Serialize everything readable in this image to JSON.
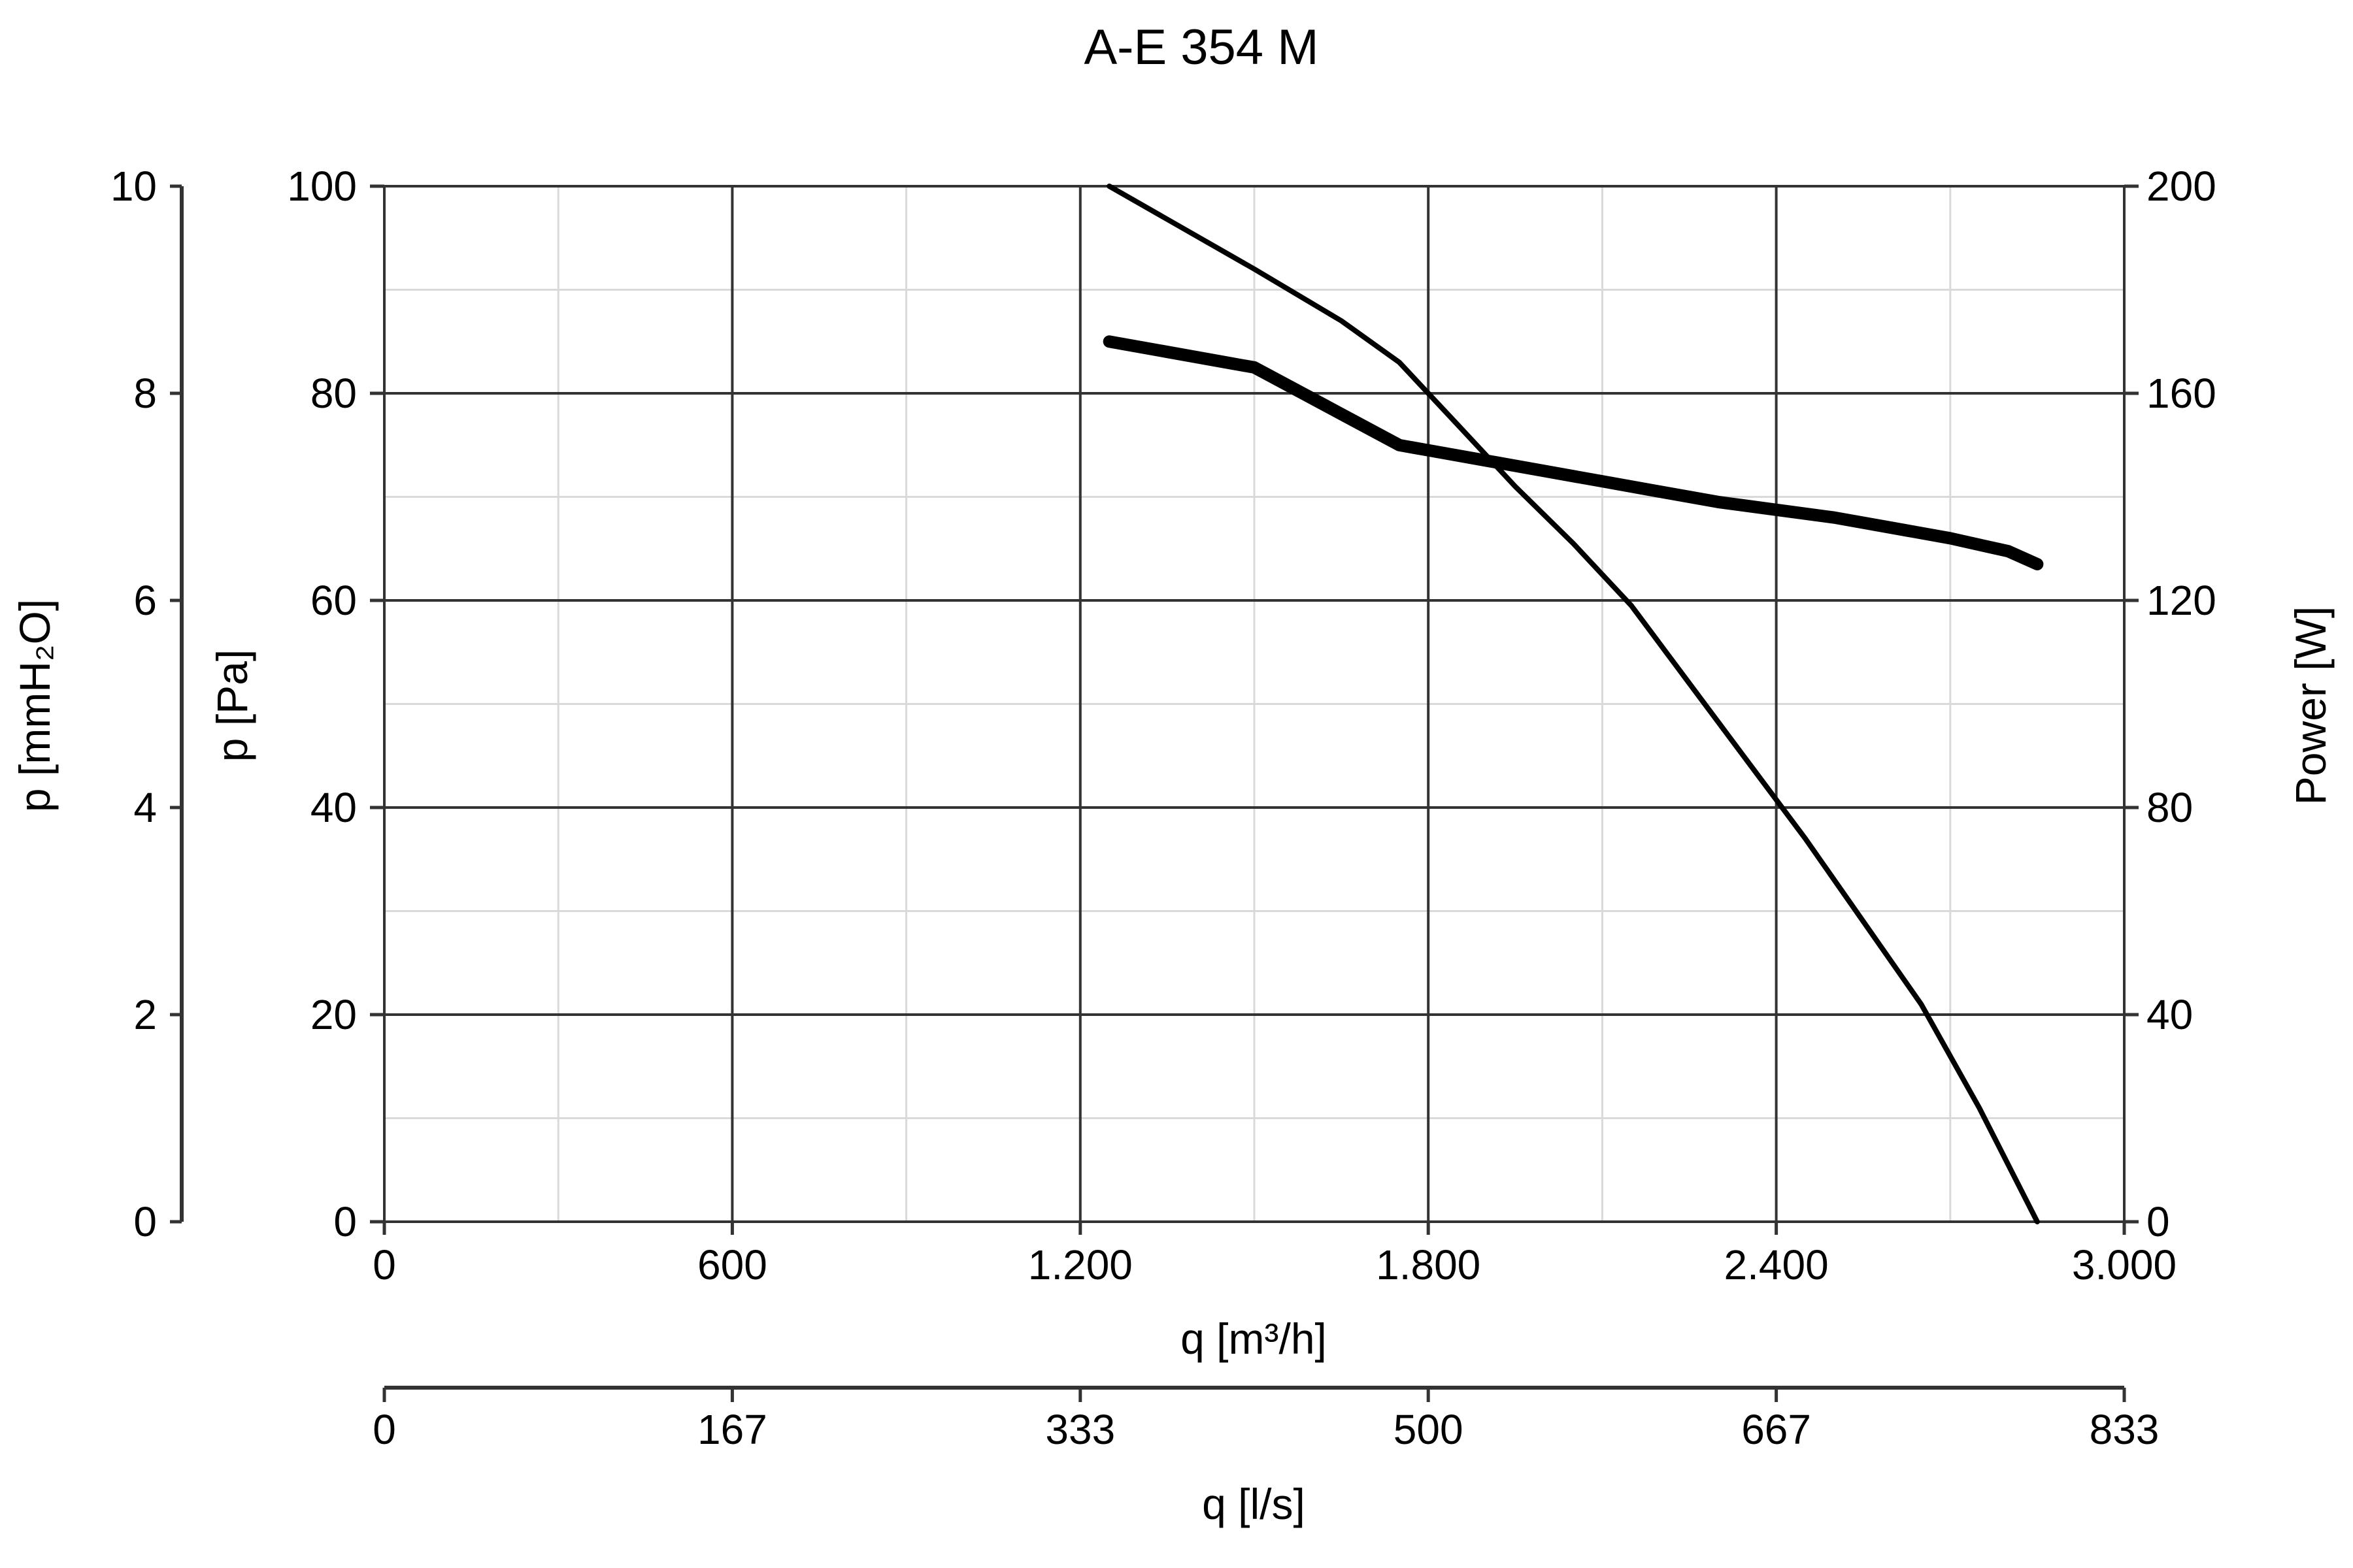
{
  "chart_data": {
    "type": "line",
    "title": "A-E 354 M",
    "xlabel": "q [m³/h]",
    "xlim": [
      0,
      3000
    ],
    "x_ticks": [
      "0",
      "600",
      "1.200",
      "1.800",
      "2.400",
      "3.000"
    ],
    "x_tick_values": [
      0,
      600,
      1200,
      1800,
      2400,
      3000
    ],
    "x2_label": "q [l/s]",
    "x2_lim": [
      0,
      833
    ],
    "x2_ticks": [
      "0",
      "167",
      "333",
      "500",
      "667",
      "833"
    ],
    "ylabel": "p [Pa]",
    "ylim": [
      0,
      100
    ],
    "y_ticks": [
      "0",
      "20",
      "40",
      "60",
      "80",
      "100"
    ],
    "y_tick_values": [
      0,
      20,
      40,
      60,
      80,
      100
    ],
    "y2_label": "p [mmH₂O]",
    "y2_lim": [
      0,
      10
    ],
    "y2_ticks": [
      "0",
      "2",
      "4",
      "6",
      "8",
      "10"
    ],
    "y3_label": "Power [W]",
    "y3_lim": [
      0,
      200
    ],
    "y3_ticks": [
      "0",
      "40",
      "80",
      "120",
      "160",
      "200"
    ],
    "grid": true,
    "series": [
      {
        "axis": "pressure",
        "points": [
          [
            1250,
            100
          ],
          [
            1500,
            92
          ],
          [
            1650,
            87
          ],
          [
            1750,
            83
          ],
          [
            1850,
            77
          ],
          [
            1950,
            71
          ],
          [
            2050,
            65.5
          ],
          [
            2150,
            59.5
          ],
          [
            2250,
            52
          ],
          [
            2350,
            44.5
          ],
          [
            2450,
            37
          ],
          [
            2550,
            29
          ],
          [
            2650,
            21
          ],
          [
            2750,
            11
          ],
          [
            2850,
            0
          ]
        ]
      },
      {
        "axis": "power",
        "points": [
          [
            1250,
            170
          ],
          [
            1350,
            168
          ],
          [
            1450,
            166
          ],
          [
            1500,
            165
          ],
          [
            1550,
            162
          ],
          [
            1650,
            156
          ],
          [
            1750,
            150
          ],
          [
            1800,
            149
          ],
          [
            1900,
            147
          ],
          [
            2000,
            145
          ],
          [
            2100,
            143
          ],
          [
            2200,
            141
          ],
          [
            2300,
            139
          ],
          [
            2400,
            137.5
          ],
          [
            2500,
            136
          ],
          [
            2600,
            134
          ],
          [
            2700,
            132
          ],
          [
            2800,
            129.5
          ],
          [
            2850,
            127
          ]
        ]
      }
    ]
  },
  "styles": {
    "line_color": "#000000",
    "grid_major": "#333333",
    "grid_minor": "#d9d9d9"
  }
}
